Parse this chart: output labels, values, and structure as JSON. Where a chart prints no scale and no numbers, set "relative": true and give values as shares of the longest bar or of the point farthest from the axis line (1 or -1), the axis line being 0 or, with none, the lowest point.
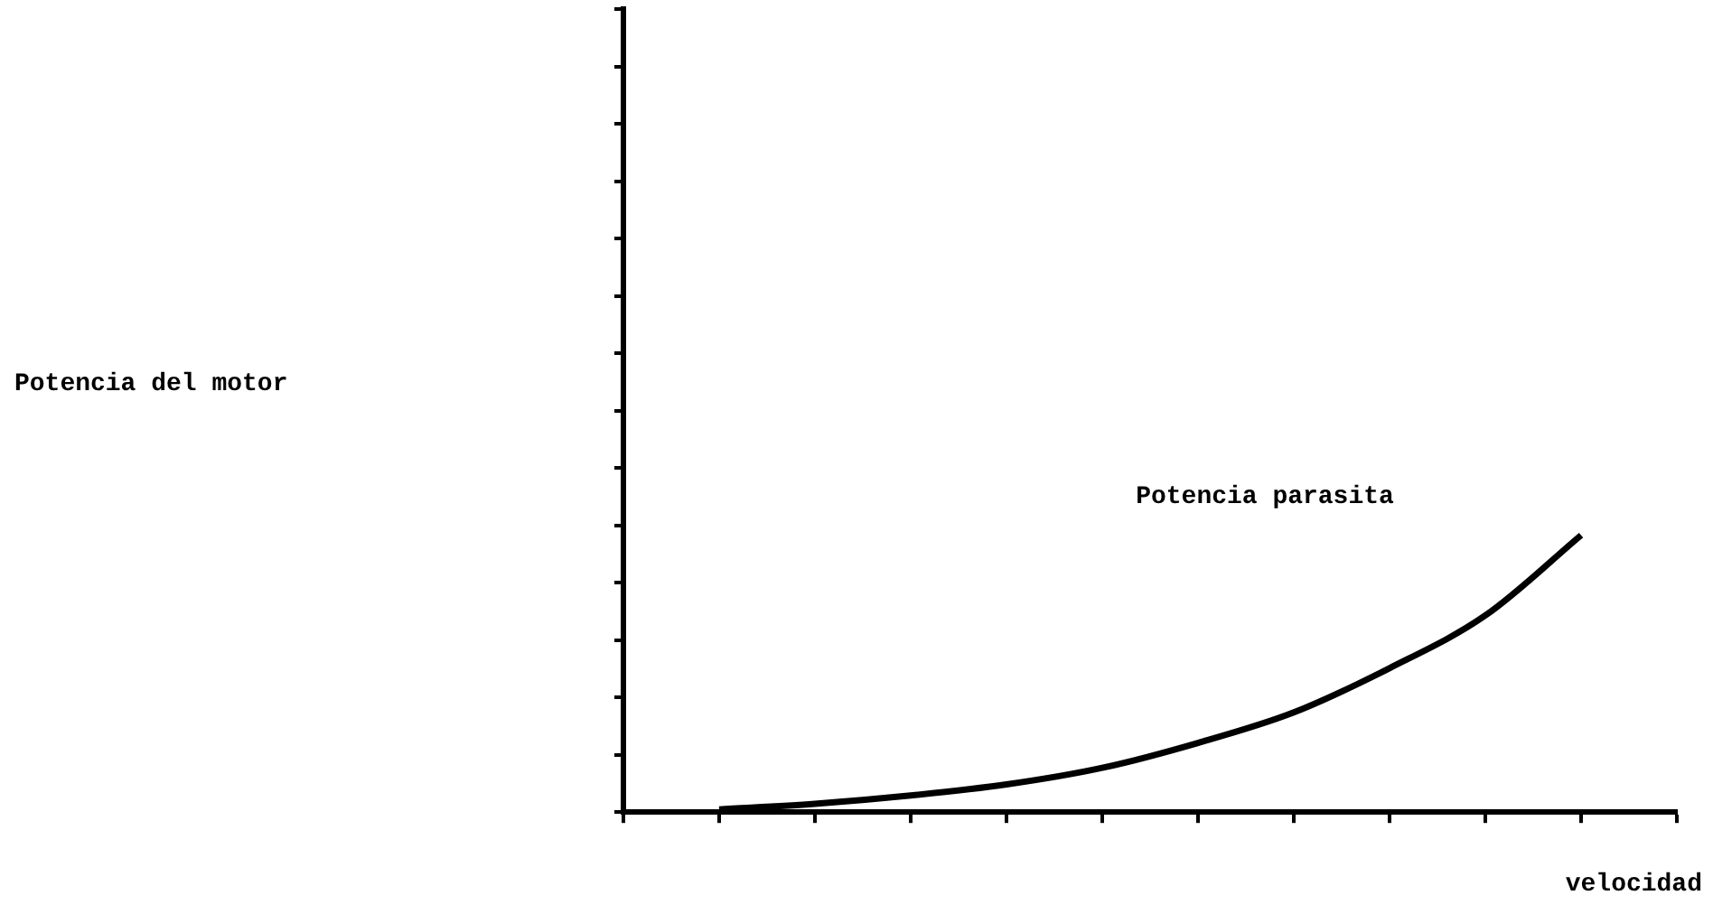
{
  "chart_data": {
    "type": "line",
    "relative": true,
    "annotations": [
      "Potencia del motor"
    ],
    "xlabel": "velocidad",
    "categories": [
      null,
      null,
      null,
      null,
      null,
      null,
      null,
      null,
      null,
      null,
      null,
      null
    ],
    "series": [
      {
        "name": "Potencia parasita",
        "color": "#000000",
        "values": [
          null,
          0.01,
          0.03,
          0.06,
          0.1,
          0.16,
          0.25,
          0.36,
          0.52,
          0.71,
          1,
          null
        ]
      }
    ],
    "legend": false,
    "grid": false,
    "marker": "none",
    "line_style": "solid"
  }
}
